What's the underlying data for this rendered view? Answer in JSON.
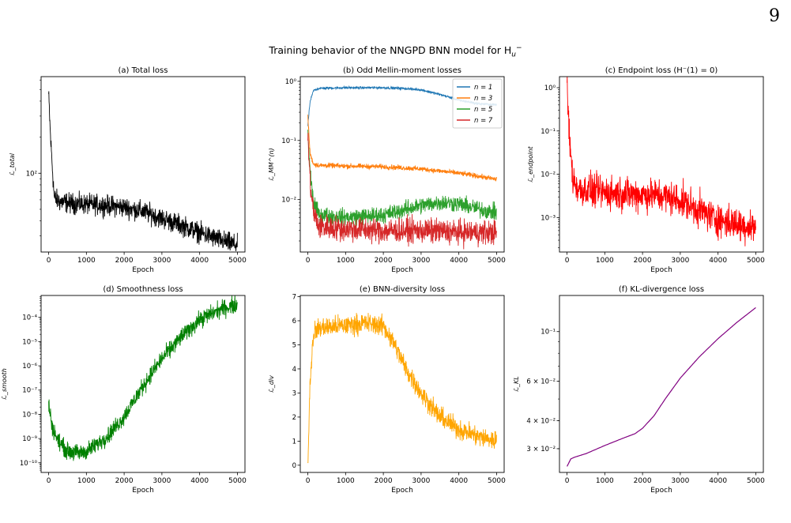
{
  "page_number": "9",
  "figure_title": "Training behavior of the NNGPD BNN model for H",
  "figure_title_sub": "u",
  "figure_title_sup": "−",
  "chart_data": [
    {
      "id": "a",
      "type": "line",
      "title": "(a) Total loss",
      "xlabel": "Epoch",
      "ylabel": "ℒ_total",
      "yscale": "log",
      "xlim": [
        -200,
        5200
      ],
      "ylim": [
        22,
        640
      ],
      "xticks": [
        0,
        1000,
        2000,
        3000,
        4000,
        5000
      ],
      "yticks": [
        {
          "v": 100,
          "label": "10²"
        }
      ],
      "color": "#000000",
      "series": [
        {
          "x": [
            0,
            50,
            100,
            150,
            300,
            600,
            1000,
            1500,
            2000,
            2500,
            3000,
            3500,
            4000,
            4500,
            5000
          ],
          "y": [
            450,
            200,
            110,
            62,
            58,
            56,
            55,
            54,
            52,
            48,
            42,
            37,
            32,
            28,
            25
          ],
          "noise": 0.12
        }
      ]
    },
    {
      "id": "b",
      "type": "line",
      "title": "(b) Odd Mellin-moment losses",
      "xlabel": "Epoch",
      "ylabel": "ℒ_MM^(n)",
      "yscale": "log",
      "xlim": [
        -200,
        5200
      ],
      "ylim": [
        0.0013,
        1.2
      ],
      "xticks": [
        0,
        1000,
        2000,
        3000,
        4000,
        5000
      ],
      "yticks": [
        {
          "v": 0.01,
          "label": "10⁻²"
        },
        {
          "v": 0.1,
          "label": "10⁻¹"
        },
        {
          "v": 1,
          "label": "10⁰"
        }
      ],
      "legend": "top-right",
      "series": [
        {
          "name": "n = 1",
          "color": "#1f77b4",
          "noise": 0.03,
          "x": [
            0,
            60,
            150,
            300,
            1000,
            2000,
            2500,
            3000,
            3500,
            4000,
            4500,
            5000
          ],
          "y": [
            0.18,
            0.45,
            0.7,
            0.76,
            0.78,
            0.78,
            0.76,
            0.72,
            0.6,
            0.48,
            0.42,
            0.4
          ]
        },
        {
          "name": "n = 3",
          "color": "#ff7f0e",
          "noise": 0.06,
          "x": [
            0,
            60,
            150,
            300,
            1000,
            2000,
            3000,
            4000,
            4500,
            5000
          ],
          "y": [
            0.26,
            0.06,
            0.04,
            0.038,
            0.037,
            0.036,
            0.033,
            0.028,
            0.025,
            0.022
          ]
        },
        {
          "name": "n = 5",
          "color": "#2ca02c",
          "noise": 0.2,
          "x": [
            0,
            60,
            150,
            300,
            1000,
            2000,
            3000,
            3500,
            4000,
            4500,
            5000
          ],
          "y": [
            0.15,
            0.03,
            0.009,
            0.0055,
            0.005,
            0.0055,
            0.008,
            0.009,
            0.0085,
            0.007,
            0.006
          ]
        },
        {
          "name": "n = 7",
          "color": "#d62728",
          "noise": 0.3,
          "x": [
            0,
            60,
            150,
            300,
            1000,
            2000,
            3000,
            4000,
            5000
          ],
          "y": [
            0.12,
            0.02,
            0.006,
            0.0035,
            0.0032,
            0.003,
            0.003,
            0.0028,
            0.0028
          ]
        }
      ]
    },
    {
      "id": "c",
      "type": "line",
      "title": "(c) Endpoint loss (H⁻(1) = 0)",
      "xlabel": "Epoch",
      "ylabel": "ℒ_endpoint",
      "yscale": "log",
      "xlim": [
        -200,
        5200
      ],
      "ylim": [
        0.00016,
        1.8
      ],
      "xticks": [
        0,
        1000,
        2000,
        3000,
        4000,
        5000
      ],
      "yticks": [
        {
          "v": 0.001,
          "label": "10⁻³"
        },
        {
          "v": 0.01,
          "label": "10⁻²"
        },
        {
          "v": 0.1,
          "label": "10⁻¹"
        },
        {
          "v": 1,
          "label": "10⁰"
        }
      ],
      "color": "#ff0000",
      "series": [
        {
          "x": [
            0,
            60,
            150,
            300,
            1000,
            2000,
            2500,
            3000,
            3500,
            4000,
            4500,
            5000
          ],
          "y": [
            1.1,
            0.08,
            0.008,
            0.0045,
            0.0038,
            0.0034,
            0.0032,
            0.0025,
            0.0015,
            0.0009,
            0.0007,
            0.0006
          ],
          "noise": 0.55
        }
      ]
    },
    {
      "id": "d",
      "type": "line",
      "title": "(d) Smoothness loss",
      "xlabel": "Epoch",
      "ylabel": "ℒ_smooth",
      "yscale": "log",
      "xlim": [
        -200,
        5200
      ],
      "ylim": [
        4e-11,
        0.0008
      ],
      "xticks": [
        0,
        1000,
        2000,
        3000,
        4000,
        5000
      ],
      "yticks": [
        {
          "v": 1e-10,
          "label": "10⁻¹⁰"
        },
        {
          "v": 1e-09,
          "label": "10⁻⁹"
        },
        {
          "v": 1e-08,
          "label": "10⁻⁸"
        },
        {
          "v": 1e-07,
          "label": "10⁻⁷"
        },
        {
          "v": 1e-06,
          "label": "10⁻⁶"
        },
        {
          "v": 1e-05,
          "label": "10⁻⁵"
        },
        {
          "v": 0.0001,
          "label": "10⁻⁴"
        }
      ],
      "color": "#008000",
      "series": [
        {
          "x": [
            0,
            100,
            250,
            500,
            800,
            1000,
            1300,
            1600,
            2000,
            2500,
            3000,
            3500,
            4000,
            4500,
            5000
          ],
          "y": [
            2.5e-08,
            3e-09,
            8e-10,
            3e-10,
            2.5e-10,
            3e-10,
            6e-10,
            1.5e-09,
            8e-09,
            1.5e-07,
            2e-06,
            1.5e-05,
            8e-05,
            0.0002,
            0.00035
          ],
          "noise": 0.5
        }
      ]
    },
    {
      "id": "e",
      "type": "line",
      "title": "(e) BNN-diversity loss",
      "xlabel": "Epoch",
      "ylabel": "ℒ_div",
      "yscale": "linear",
      "xlim": [
        -200,
        5200
      ],
      "ylim": [
        -0.3,
        7.05
      ],
      "xticks": [
        0,
        1000,
        2000,
        3000,
        4000,
        5000
      ],
      "yticks": [
        {
          "v": 0,
          "label": "0"
        },
        {
          "v": 1,
          "label": "1"
        },
        {
          "v": 2,
          "label": "2"
        },
        {
          "v": 3,
          "label": "3"
        },
        {
          "v": 4,
          "label": "4"
        },
        {
          "v": 5,
          "label": "5"
        },
        {
          "v": 6,
          "label": "6"
        },
        {
          "v": 7,
          "label": "7"
        }
      ],
      "color": "#ffa500",
      "series": [
        {
          "x": [
            0,
            60,
            150,
            300,
            1000,
            1500,
            2000,
            2300,
            2600,
            3000,
            3500,
            4000,
            4500,
            5000
          ],
          "y": [
            0,
            3.5,
            5.5,
            5.7,
            5.8,
            5.9,
            5.8,
            5.0,
            4.0,
            3.0,
            2.0,
            1.5,
            1.2,
            1.0
          ],
          "noise_abs": 0.45
        }
      ]
    },
    {
      "id": "f",
      "type": "line",
      "title": "(f) KL-divergence loss",
      "xlabel": "Epoch",
      "ylabel": "ℒ_KL",
      "yscale": "log",
      "xlim": [
        -200,
        5200
      ],
      "ylim": [
        0.0235,
        0.145
      ],
      "xticks": [
        0,
        1000,
        2000,
        3000,
        4000,
        5000
      ],
      "yticks": [
        {
          "v": 0.03,
          "label": "3 × 10⁻²"
        },
        {
          "v": 0.04,
          "label": "4 × 10⁻²"
        },
        {
          "v": 0.06,
          "label": "6 × 10⁻²"
        },
        {
          "v": 0.1,
          "label": "10⁻¹"
        }
      ],
      "color": "#800080",
      "series": [
        {
          "x": [
            0,
            100,
            200,
            500,
            1000,
            1500,
            1800,
            2000,
            2300,
            2600,
            3000,
            3500,
            4000,
            4500,
            5000
          ],
          "y": [
            0.025,
            0.027,
            0.0275,
            0.0285,
            0.031,
            0.0335,
            0.035,
            0.037,
            0.042,
            0.05,
            0.062,
            0.077,
            0.093,
            0.11,
            0.128
          ]
        }
      ]
    }
  ]
}
